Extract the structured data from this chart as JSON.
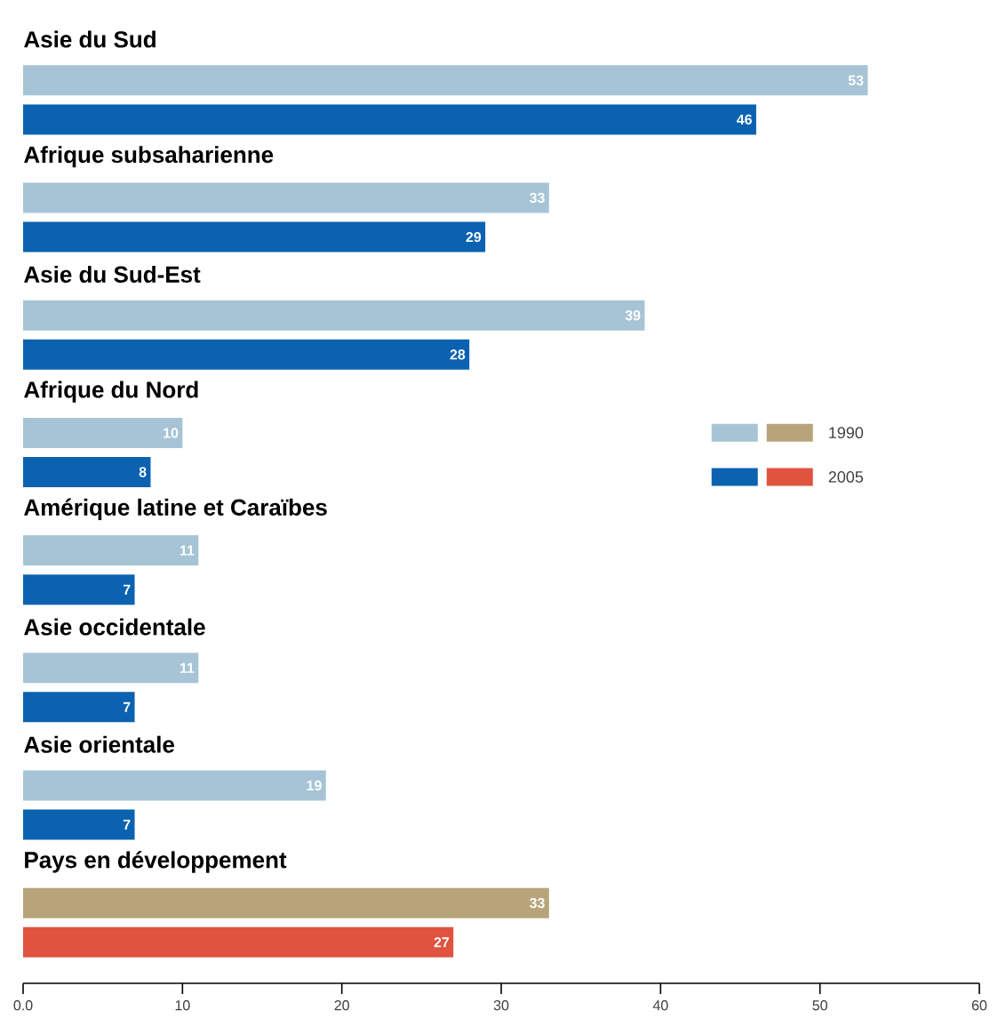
{
  "chart_data": {
    "type": "bar",
    "orientation": "horizontal",
    "categories": [
      "Asie du Sud",
      "Afrique subsaharienne",
      "Asie du Sud-Est",
      "Afrique du Nord",
      "Amérique latine et Caraïbes",
      "Asie occidentale",
      "Asie orientale",
      "Pays en développement"
    ],
    "series": [
      {
        "name": "1990",
        "colors": [
          "#a6c4d6",
          "#a6c4d6",
          "#a6c4d6",
          "#a6c4d6",
          "#a6c4d6",
          "#a6c4d6",
          "#a6c4d6",
          "#b8a47a"
        ],
        "values": [
          53,
          33,
          39,
          10,
          11,
          11,
          19,
          33
        ]
      },
      {
        "name": "2005",
        "colors": [
          "#0a62b0",
          "#0a62b0",
          "#0a62b0",
          "#0a62b0",
          "#0a62b0",
          "#0a62b0",
          "#0a62b0",
          "#e0533f"
        ],
        "values": [
          46,
          29,
          28,
          8,
          7,
          7,
          7,
          27
        ]
      }
    ],
    "xlim": [
      0,
      60
    ],
    "xticks": [
      {
        "value": 0,
        "label": "0.0"
      },
      10,
      20,
      30,
      40,
      50,
      60
    ],
    "data_labels": true,
    "legend": "right",
    "grid": false
  }
}
